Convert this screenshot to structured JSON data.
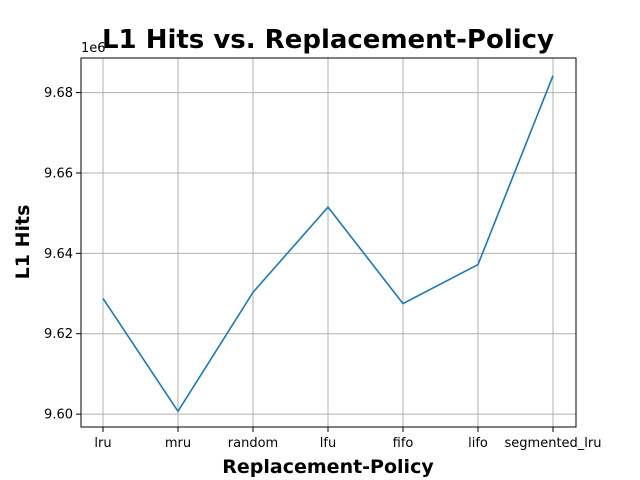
{
  "chart_data": {
    "type": "line",
    "title": "L1 Hits vs. Replacement-Policy",
    "xlabel": "Replacement-Policy",
    "ylabel": "L1 Hits",
    "y_offset_label": "1e6",
    "categories": [
      "lru",
      "mru",
      "random",
      "lfu",
      "fifo",
      "lifo",
      "segmented_lru"
    ],
    "series": [
      {
        "values": [
          9628800,
          9600700,
          9630300,
          9651500,
          9627500,
          9637200,
          9684200
        ],
        "color": "#1f77b4"
      }
    ],
    "ylim": [
      9596800,
      9688600
    ],
    "yticks": [
      9600000,
      9620000,
      9640000,
      9660000,
      9680000
    ],
    "ytick_labels": [
      "9.60",
      "9.62",
      "9.64",
      "9.66",
      "9.68"
    ],
    "grid": true
  }
}
